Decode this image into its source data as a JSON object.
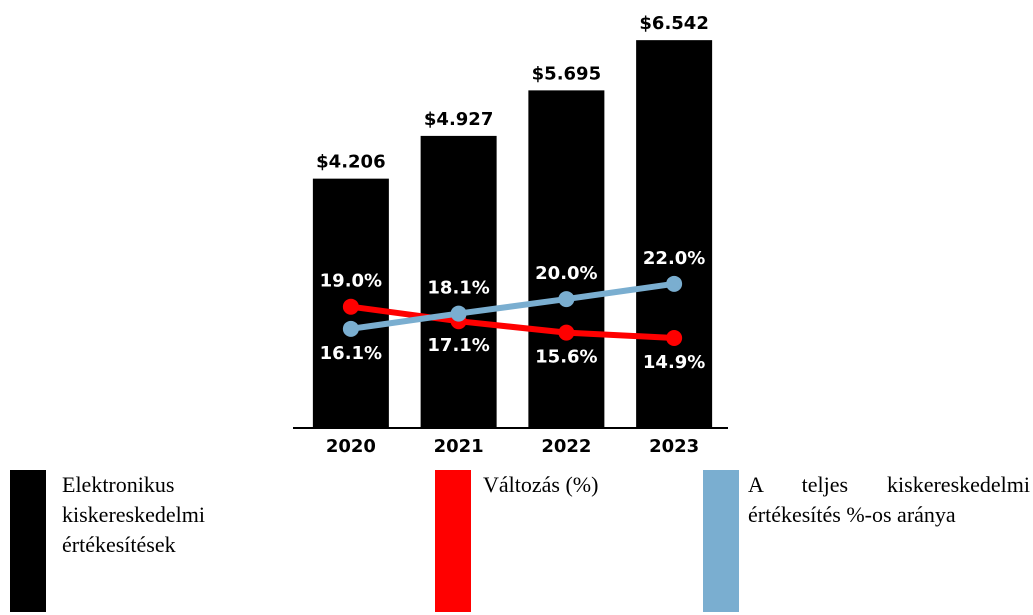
{
  "chart_data": {
    "type": "bar",
    "categories": [
      "2020",
      "2021",
      "2022",
      "2023"
    ],
    "series": [
      {
        "name": "Elektronikus kiskereskedelmi értékesítések",
        "type": "bar",
        "color": "#000000",
        "values": [
          4.206,
          4.927,
          5.695,
          6.542
        ],
        "value_labels": [
          "$4.206",
          "$4.927",
          "$5.695",
          "$6.542"
        ]
      },
      {
        "name": "Változás (%)",
        "type": "line",
        "axis": "y2",
        "color": "#ff0000",
        "values": [
          19.0,
          17.1,
          15.6,
          14.9
        ],
        "value_labels": [
          "19.0%",
          "17.1%",
          "15.6%",
          "14.9%"
        ]
      },
      {
        "name": "A teljes kiskereskedelmi értékesítés %-os aránya",
        "type": "line",
        "axis": "y2",
        "color": "#7aaed0",
        "values": [
          16.1,
          18.1,
          20.0,
          22.0
        ],
        "value_labels": [
          "16.1%",
          "18.1%",
          "20.0%",
          "22.0%"
        ]
      }
    ],
    "ylim": [
      0,
      7
    ],
    "y2lim": [
      3.1,
      57.5
    ]
  }
}
